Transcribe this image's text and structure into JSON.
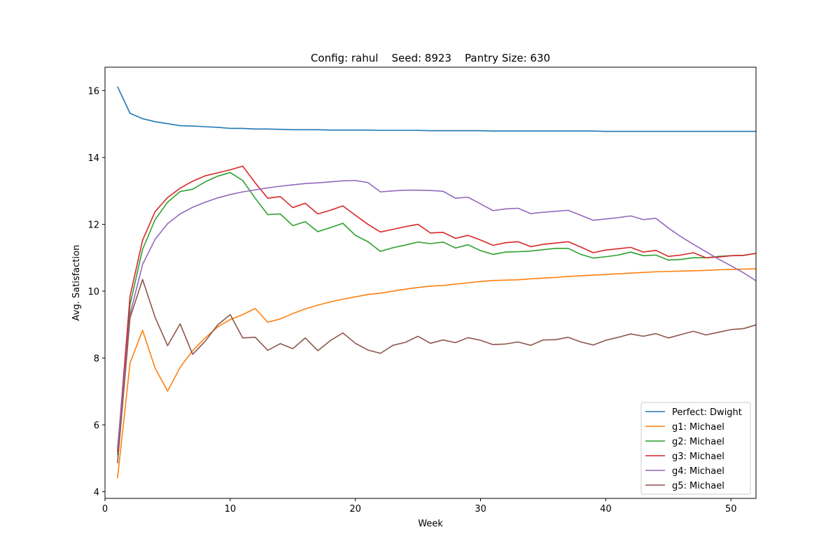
{
  "chart_data": {
    "type": "line",
    "title": "Config: rahul    Seed: 8923    Pantry Size: 630",
    "xlabel": "Week",
    "ylabel": "Avg. Satisfaction",
    "xlim": [
      0,
      52
    ],
    "ylim": [
      3.8,
      16.7
    ],
    "xticks": [
      0,
      10,
      20,
      30,
      40,
      50
    ],
    "yticks": [
      4,
      6,
      8,
      10,
      12,
      14,
      16
    ],
    "grid": false,
    "legend_position": "lower-right",
    "x": [
      1,
      2,
      3,
      4,
      5,
      6,
      7,
      8,
      9,
      10,
      11,
      12,
      13,
      14,
      15,
      16,
      17,
      18,
      19,
      20,
      21,
      22,
      23,
      24,
      25,
      26,
      27,
      28,
      29,
      30,
      31,
      32,
      33,
      34,
      35,
      36,
      37,
      38,
      39,
      40,
      41,
      42,
      43,
      44,
      45,
      46,
      47,
      48,
      49,
      50,
      51,
      52
    ],
    "series": [
      {
        "name": "Perfect: Dwight",
        "color": "#1f77b4",
        "values": [
          16.12,
          15.32,
          15.16,
          15.07,
          15.01,
          14.95,
          14.94,
          14.92,
          14.9,
          14.87,
          14.87,
          14.85,
          14.85,
          14.84,
          14.83,
          14.83,
          14.83,
          14.82,
          14.82,
          14.82,
          14.82,
          14.81,
          14.81,
          14.81,
          14.81,
          14.8,
          14.8,
          14.8,
          14.8,
          14.8,
          14.79,
          14.79,
          14.79,
          14.79,
          14.79,
          14.79,
          14.79,
          14.79,
          14.79,
          14.78,
          14.78,
          14.78,
          14.78,
          14.78,
          14.78,
          14.78,
          14.78,
          14.78,
          14.78,
          14.78,
          14.78,
          14.78
        ]
      },
      {
        "name": "g1: Michael",
        "color": "#ff7f0e",
        "values": [
          4.4,
          7.85,
          8.83,
          7.7,
          7.01,
          7.72,
          8.22,
          8.6,
          8.93,
          9.15,
          9.3,
          9.48,
          9.07,
          9.17,
          9.33,
          9.47,
          9.58,
          9.68,
          9.76,
          9.83,
          9.9,
          9.94,
          10.0,
          10.06,
          10.11,
          10.15,
          10.17,
          10.21,
          10.25,
          10.29,
          10.32,
          10.33,
          10.34,
          10.37,
          10.39,
          10.41,
          10.44,
          10.46,
          10.48,
          10.5,
          10.52,
          10.54,
          10.56,
          10.58,
          10.59,
          10.6,
          10.61,
          10.62,
          10.64,
          10.65,
          10.66,
          10.67
        ]
      },
      {
        "name": "g2: Michael",
        "color": "#2ca02c",
        "values": [
          5.1,
          9.6,
          11.25,
          12.14,
          12.66,
          12.98,
          13.05,
          13.27,
          13.44,
          13.55,
          13.31,
          12.78,
          12.29,
          12.31,
          11.96,
          12.08,
          11.78,
          11.9,
          12.03,
          11.67,
          11.48,
          11.19,
          11.3,
          11.38,
          11.47,
          11.42,
          11.47,
          11.29,
          11.39,
          11.21,
          11.1,
          11.17,
          11.18,
          11.2,
          11.24,
          11.28,
          11.28,
          11.1,
          10.99,
          11.03,
          11.08,
          11.17,
          11.06,
          11.08,
          10.93,
          10.95,
          11.0,
          11.0,
          11.04,
          11.06,
          11.07,
          11.13
        ]
      },
      {
        "name": "g3: Michael",
        "color": "#d62728",
        "values": [
          5.2,
          9.85,
          11.52,
          12.38,
          12.8,
          13.08,
          13.29,
          13.45,
          13.54,
          13.63,
          13.74,
          13.24,
          12.78,
          12.83,
          12.5,
          12.63,
          12.31,
          12.42,
          12.55,
          12.27,
          12.0,
          11.77,
          11.85,
          11.93,
          12.0,
          11.74,
          11.76,
          11.58,
          11.67,
          11.53,
          11.37,
          11.45,
          11.48,
          11.33,
          11.4,
          11.44,
          11.48,
          11.32,
          11.15,
          11.23,
          11.27,
          11.31,
          11.17,
          11.22,
          11.04,
          11.08,
          11.15,
          11.0,
          11.02,
          11.06,
          11.07,
          11.13
        ]
      },
      {
        "name": "g4: Michael",
        "color": "#9467bd",
        "values": [
          5.3,
          9.3,
          10.8,
          11.55,
          12.02,
          12.31,
          12.51,
          12.66,
          12.79,
          12.89,
          12.97,
          13.03,
          13.09,
          13.14,
          13.18,
          13.22,
          13.24,
          13.27,
          13.3,
          13.31,
          13.25,
          12.97,
          13.0,
          13.02,
          13.02,
          13.01,
          12.99,
          12.78,
          12.81,
          12.61,
          12.41,
          12.46,
          12.48,
          12.32,
          12.36,
          12.39,
          12.42,
          12.27,
          12.12,
          12.16,
          12.2,
          12.25,
          12.14,
          12.18,
          11.89,
          11.63,
          11.4,
          11.18,
          10.96,
          10.76,
          10.55,
          10.31
        ]
      },
      {
        "name": "g5: Michael",
        "color": "#8c564b",
        "values": [
          4.85,
          9.2,
          10.35,
          9.22,
          8.37,
          9.02,
          8.11,
          8.5,
          8.99,
          9.3,
          8.6,
          8.62,
          8.23,
          8.43,
          8.28,
          8.6,
          8.22,
          8.52,
          8.75,
          8.44,
          8.24,
          8.14,
          8.38,
          8.47,
          8.65,
          8.44,
          8.54,
          8.46,
          8.61,
          8.53,
          8.4,
          8.42,
          8.48,
          8.38,
          8.54,
          8.55,
          8.62,
          8.48,
          8.39,
          8.53,
          8.62,
          8.72,
          8.65,
          8.73,
          8.6,
          8.7,
          8.8,
          8.69,
          8.77,
          8.85,
          8.88,
          8.99
        ]
      }
    ]
  }
}
